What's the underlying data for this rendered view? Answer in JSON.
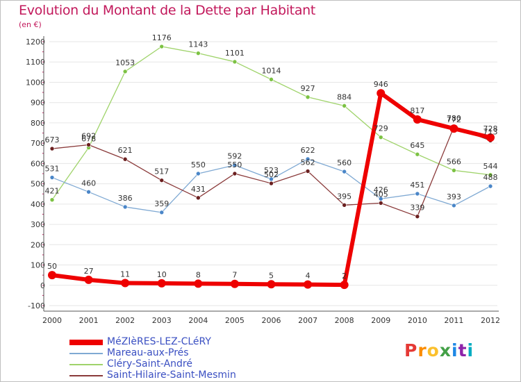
{
  "title": "Evolution du Montant de la Dette par Habitant",
  "subtitle": "(en €)",
  "logo_text": "Proxiti",
  "logo_colors": [
    "#e53935",
    "#fb8c00",
    "#fbc02d",
    "#43a047",
    "#1e88e5",
    "#8e24aa",
    "#00acc1"
  ],
  "chart_data": {
    "type": "line",
    "title": "Evolution du Montant de la Dette par Habitant",
    "ylabel": "(en €)",
    "ylim": [
      -100,
      1200
    ],
    "yticks": [
      -100,
      0,
      100,
      200,
      300,
      400,
      500,
      600,
      700,
      800,
      900,
      1000,
      1100,
      1200
    ],
    "grid": "horizontal",
    "legend_position": "bottom-left",
    "x": [
      "2000",
      "2001",
      "2002",
      "2003",
      "2004",
      "2005",
      "2006",
      "2007",
      "2008",
      "2009",
      "2010",
      "2011",
      "2012"
    ],
    "series": [
      {
        "name": "MéZIèRES-LEZ-CLéRY",
        "color": "#ee0000",
        "marker_color": "#ee0000",
        "width": 6,
        "marker_radius": 6,
        "values": [
          50,
          27,
          11,
          10,
          8,
          7,
          5,
          4,
          2,
          946,
          817,
          772,
          728
        ],
        "labels": [
          "50",
          "27",
          "11",
          "10",
          "8",
          "7",
          "5",
          "4",
          "2",
          "946",
          "817",
          "772",
          "728"
        ]
      },
      {
        "name": "Mareau-aux-Prés",
        "color": "#7fa9d3",
        "marker_color": "#4a86c8",
        "width": 1.3,
        "marker_radius": 3,
        "values": [
          531,
          460,
          386,
          359,
          550,
          592,
          523,
          622,
          560,
          426,
          451,
          393,
          488
        ],
        "labels": [
          "531",
          "460",
          "386",
          "359",
          "550",
          "592",
          "523",
          "622",
          "560",
          "426",
          "451",
          "393",
          "488"
        ]
      },
      {
        "name": "Cléry-Saint-André",
        "color": "#9fd36a",
        "marker_color": "#7cc243",
        "width": 1.3,
        "marker_radius": 3,
        "values": [
          421,
          678,
          1053,
          1176,
          1143,
          1101,
          1014,
          927,
          884,
          729,
          645,
          566,
          544
        ],
        "labels": [
          "421",
          "678",
          "1053",
          "1176",
          "1143",
          "1101",
          "1014",
          "927",
          "884",
          "729",
          "645",
          "566",
          "544"
        ]
      },
      {
        "name": "Saint-Hilaire-Saint-Mesmin",
        "color": "#8a3a3a",
        "marker_color": "#6b2020",
        "width": 1.3,
        "marker_radius": 3,
        "values": [
          673,
          692,
          621,
          517,
          431,
          550,
          502,
          562,
          395,
          405,
          339,
          780,
          713
        ],
        "labels": [
          "673",
          "692",
          "621",
          "517",
          "431",
          "550",
          "502",
          "562",
          "395",
          "405",
          "339",
          "780",
          "713"
        ]
      }
    ]
  }
}
